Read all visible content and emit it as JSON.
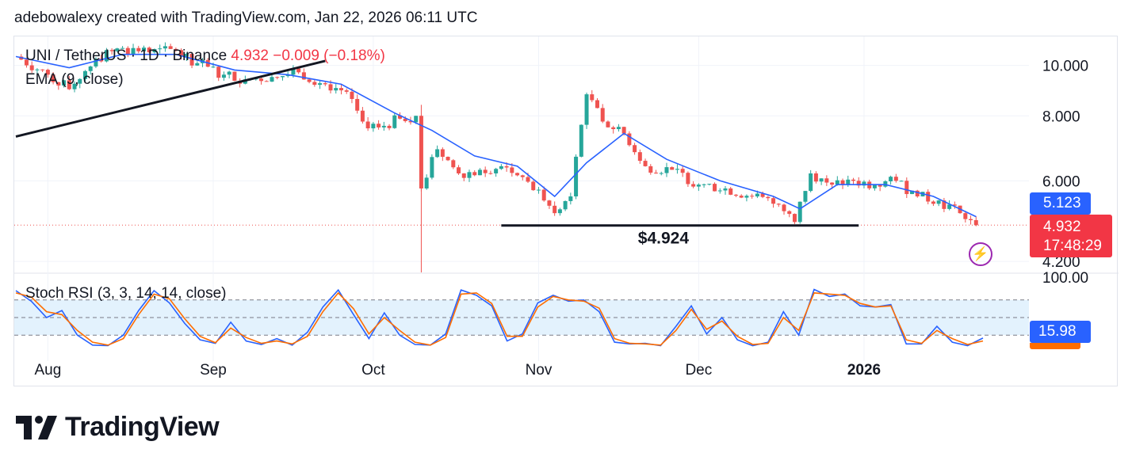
{
  "credit": "adebowalexy created with TradingView.com, Jan 22, 2026 06:11 UTC",
  "legend": {
    "symbol": "UNI / TetherUS · 1D · Binance",
    "price": "4.932",
    "change": "−0.009 (−0.18%)",
    "ema": "EMA (9, close)",
    "stoch": "Stoch RSI (3, 3, 14, 14, close)"
  },
  "tags": {
    "ema_value": "5.123",
    "price_value": "4.932",
    "countdown": "17:48:29",
    "stoch_value": "15.98"
  },
  "annotation_support": "$4.924",
  "branding": {
    "logo_text": "TradingView"
  },
  "colors": {
    "up": "#26a69a",
    "down": "#ef5350",
    "ema": "#2962ff",
    "stoch_k": "#2962ff",
    "stoch_d": "#ff6d00",
    "stoch_band": "#e3f2fd"
  },
  "icons": {
    "alert": "lightning-bolt-icon"
  },
  "chart_data": [
    {
      "type": "candlestick",
      "title": "UNI / TetherUS · 1D · Binance",
      "x_tick_labels": [
        "Aug",
        "Sep",
        "Oct",
        "Nov",
        "Dec",
        "2026"
      ],
      "y_tick_labels": [
        "10.000",
        "8.000",
        "6.000",
        "4.200"
      ],
      "ylim": [
        4.0,
        10.6
      ],
      "y_scale": "log",
      "grid": true,
      "last_price": 4.932,
      "ema_last": 5.123,
      "support_level": 4.924,
      "series": [
        {
          "name": "UNI / TetherUS",
          "points": [
            [
              "2025-07-26",
              10.4
            ],
            [
              "2025-08-01",
              9.6
            ],
            [
              "2025-08-05",
              9.0
            ],
            [
              "2025-08-10",
              10.3
            ],
            [
              "2025-08-15",
              10.8
            ],
            [
              "2025-08-20",
              10.6
            ],
            [
              "2025-08-25",
              10.7
            ],
            [
              "2025-08-29",
              10.1
            ],
            [
              "2025-09-03",
              9.6
            ],
            [
              "2025-09-07",
              9.4
            ],
            [
              "2025-09-12",
              9.5
            ],
            [
              "2025-09-17",
              9.7
            ],
            [
              "2025-09-22",
              9.2
            ],
            [
              "2025-09-26",
              8.9
            ],
            [
              "2025-09-29",
              7.8
            ],
            [
              "2025-10-02",
              7.6
            ],
            [
              "2025-10-06",
              7.9
            ],
            [
              "2025-10-09",
              8.0
            ],
            [
              "2025-10-10",
              5.8
            ],
            [
              "2025-10-13",
              6.9
            ],
            [
              "2025-10-17",
              6.2
            ],
            [
              "2025-10-21",
              6.3
            ],
            [
              "2025-10-25",
              6.4
            ],
            [
              "2025-10-29",
              6.1
            ],
            [
              "2025-11-02",
              5.5
            ],
            [
              "2025-11-04",
              5.2
            ],
            [
              "2025-11-07",
              5.6
            ],
            [
              "2025-11-10",
              8.8
            ],
            [
              "2025-11-13",
              7.8
            ],
            [
              "2025-11-17",
              7.4
            ],
            [
              "2025-11-21",
              6.4
            ],
            [
              "2025-11-26",
              6.3
            ],
            [
              "2025-12-01",
              5.9
            ],
            [
              "2025-12-06",
              5.8
            ],
            [
              "2025-12-11",
              5.6
            ],
            [
              "2025-12-16",
              5.4
            ],
            [
              "2025-12-19",
              5.0
            ],
            [
              "2025-12-22",
              6.2
            ],
            [
              "2025-12-26",
              5.9
            ],
            [
              "2025-12-30",
              6.0
            ],
            [
              "2026-01-03",
              5.9
            ],
            [
              "2026-01-07",
              6.0
            ],
            [
              "2026-01-11",
              5.6
            ],
            [
              "2026-01-15",
              5.5
            ],
            [
              "2026-01-19",
              5.2
            ],
            [
              "2026-01-22",
              4.93
            ]
          ]
        },
        {
          "name": "EMA (9, close)",
          "points": [
            [
              "2025-07-26",
              10.4
            ],
            [
              "2025-08-05",
              9.9
            ],
            [
              "2025-08-15",
              10.5
            ],
            [
              "2025-08-25",
              10.5
            ],
            [
              "2025-09-05",
              9.8
            ],
            [
              "2025-09-15",
              9.6
            ],
            [
              "2025-09-25",
              9.2
            ],
            [
              "2025-10-05",
              8.1
            ],
            [
              "2025-10-12",
              7.5
            ],
            [
              "2025-10-20",
              6.7
            ],
            [
              "2025-10-28",
              6.4
            ],
            [
              "2025-11-04",
              5.6
            ],
            [
              "2025-11-10",
              6.5
            ],
            [
              "2025-11-17",
              7.4
            ],
            [
              "2025-11-25",
              6.6
            ],
            [
              "2025-12-05",
              6.0
            ],
            [
              "2025-12-15",
              5.6
            ],
            [
              "2025-12-20",
              5.3
            ],
            [
              "2025-12-27",
              5.9
            ],
            [
              "2026-01-05",
              5.9
            ],
            [
              "2026-01-14",
              5.6
            ],
            [
              "2026-01-22",
              5.12
            ]
          ]
        }
      ]
    },
    {
      "type": "line",
      "title": "Stoch RSI (3, 3, 14, 14, close)",
      "ylim": [
        0,
        100
      ],
      "y_tick_labels": [
        "100.00"
      ],
      "bands": [
        80,
        50,
        20
      ],
      "series": [
        {
          "name": "%K",
          "values": [
            96,
            78,
            50,
            62,
            20,
            3,
            2,
            20,
            62,
            96,
            75,
            40,
            12,
            6,
            42,
            10,
            4,
            14,
            3,
            25,
            68,
            97,
            55,
            14,
            58,
            20,
            4,
            3,
            22,
            97,
            88,
            70,
            10,
            22,
            75,
            88,
            78,
            80,
            60,
            8,
            5,
            6,
            2,
            35,
            70,
            22,
            50,
            12,
            2,
            8,
            60,
            20,
            98,
            86,
            90,
            70,
            68,
            72,
            5,
            5,
            35,
            8,
            2,
            15
          ]
        },
        {
          "name": "%D",
          "values": [
            92,
            85,
            60,
            55,
            28,
            8,
            3,
            14,
            55,
            90,
            82,
            48,
            18,
            7,
            32,
            16,
            6,
            10,
            5,
            18,
            60,
            92,
            65,
            22,
            50,
            28,
            8,
            3,
            16,
            90,
            92,
            74,
            18,
            18,
            68,
            86,
            80,
            78,
            66,
            14,
            6,
            5,
            3,
            28,
            64,
            30,
            44,
            18,
            4,
            6,
            50,
            28,
            92,
            90,
            88,
            74,
            68,
            70,
            12,
            6,
            28,
            14,
            4,
            10
          ]
        }
      ]
    }
  ]
}
